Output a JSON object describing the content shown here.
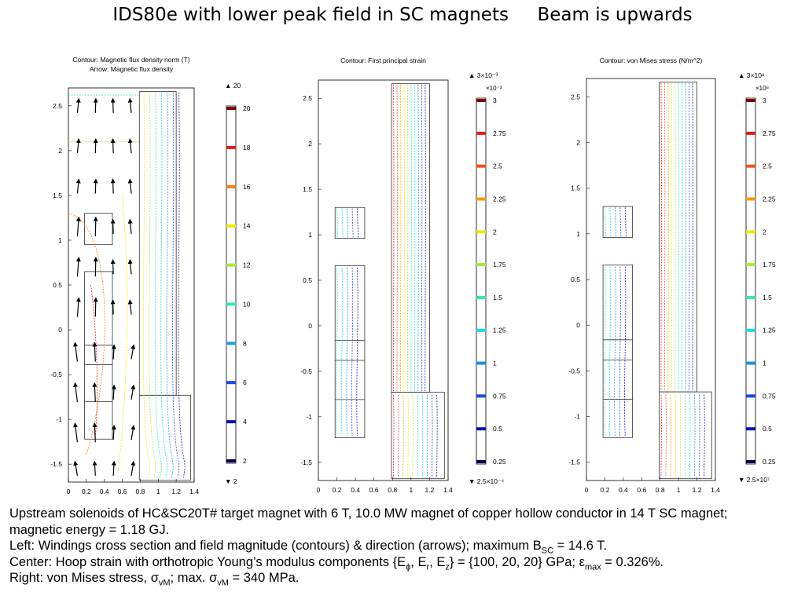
{
  "title": "IDS80e with lower peak field in SC magnets     Beam is upwards",
  "caption": {
    "line1": "Upstream solenoids of HC&SC20T# target magnet with 6 T, 10.0 MW magnet of copper hollow conductor in 14 T SC magnet;",
    "line2": "magnetic energy = 1.18 GJ.",
    "line3_a": "Left:  Windings cross section and field magnitude (contours) & direction (arrows); maximum B",
    "line3_sub": "SC",
    "line3_b": " = 14.6 T.",
    "line4_a": "Center:  Hoop strain with orthotropic Young’s modulus components {E",
    "line4_sub1": "ϕ",
    "line4_b": ", E",
    "line4_sub2": "r",
    "line4_c": ", E",
    "line4_sub3": "z",
    "line4_d": "} = {100, 20, 20} GPa; ε",
    "line4_sub4": "max",
    "line4_e": " = 0.326%.",
    "line5_a": "Right:  von Mises stress, σ",
    "line5_sub1": "vM",
    "line5_b": "; max. σ",
    "line5_sub2": "vM",
    "line5_c": " = 340 MPa."
  },
  "chart_data": [
    {
      "type": "contour",
      "title": "Contour: Magnetic flux density norm (T)",
      "subtitle": "Arrow: Magnetic flux density",
      "xlim": [
        0,
        1.4
      ],
      "ylim": [
        -1.7,
        2.7
      ],
      "xticks": [
        "0",
        "0.2",
        "0.4",
        "0.6",
        "0.8",
        "1",
        "1.2",
        "1.4"
      ],
      "yticks": [
        "-1.5",
        "-1",
        "-0.5",
        "0",
        "0.5",
        "1",
        "1.5",
        "2",
        "2.5"
      ],
      "colorbar": {
        "max_label": "▲ 20",
        "min_label": "▼ 2",
        "levels": [
          {
            "label": "20",
            "color": "#7f0000"
          },
          {
            "label": "18",
            "color": "#e21a1a"
          },
          {
            "label": "16",
            "color": "#f57d10"
          },
          {
            "label": "14",
            "color": "#f2e600"
          },
          {
            "label": "12",
            "color": "#a4ec3e"
          },
          {
            "label": "10",
            "color": "#33e8a8"
          },
          {
            "label": "8",
            "color": "#1aa0e0"
          },
          {
            "label": "6",
            "color": "#1f44e0"
          },
          {
            "label": "4",
            "color": "#1010b0"
          },
          {
            "label": "2",
            "color": "#00004f"
          }
        ]
      }
    },
    {
      "type": "contour",
      "title": "Contour: First principal strain",
      "xlim": [
        0,
        1.4
      ],
      "ylim": [
        -1.7,
        2.7
      ],
      "xticks": [
        "0",
        "0.2",
        "0.4",
        "0.6",
        "0.8",
        "1",
        "1.2",
        "1.4"
      ],
      "yticks": [
        "-1.5",
        "-1",
        "-0.5",
        "0",
        "0.5",
        "1",
        "1.5",
        "2",
        "2.5"
      ],
      "colorbar": {
        "max_label": "▲ 3×10⁻³",
        "multiplier": "×10⁻³",
        "min_label": "▼ 2.5×10⁻⁴",
        "levels": [
          {
            "label": "3",
            "color": "#7f0000"
          },
          {
            "label": "2.75",
            "color": "#e21a1a"
          },
          {
            "label": "2.5",
            "color": "#f0501a"
          },
          {
            "label": "2.25",
            "color": "#f89a10"
          },
          {
            "label": "2",
            "color": "#f2e600"
          },
          {
            "label": "1.75",
            "color": "#a4ec3e"
          },
          {
            "label": "1.5",
            "color": "#33e8a8"
          },
          {
            "label": "1.25",
            "color": "#1ad8e0"
          },
          {
            "label": "1",
            "color": "#1a90e0"
          },
          {
            "label": "0.75",
            "color": "#1f44e0"
          },
          {
            "label": "0.5",
            "color": "#1010b0"
          },
          {
            "label": "0.25",
            "color": "#00004f"
          }
        ]
      }
    },
    {
      "type": "contour",
      "title": "Contour: von Mises stress (N/m^2)",
      "xlim": [
        0,
        1.4
      ],
      "ylim": [
        -1.7,
        2.7
      ],
      "xticks": [
        "0",
        "0.2",
        "0.4",
        "0.6",
        "0.8",
        "1",
        "1.2",
        "1.4"
      ],
      "yticks": [
        "-1.5",
        "-1",
        "-0.5",
        "0",
        "0.5",
        "1",
        "1.5",
        "2",
        "2.5"
      ],
      "colorbar": {
        "max_label": "▲ 3×10⁸",
        "multiplier": "×10⁸",
        "min_label": "▼ 2.5×10⁷",
        "levels": [
          {
            "label": "3",
            "color": "#7f0000"
          },
          {
            "label": "2.75",
            "color": "#e21a1a"
          },
          {
            "label": "2.5",
            "color": "#f0501a"
          },
          {
            "label": "2.25",
            "color": "#f89a10"
          },
          {
            "label": "2",
            "color": "#f2e600"
          },
          {
            "label": "1.75",
            "color": "#a4ec3e"
          },
          {
            "label": "1.5",
            "color": "#33e8a8"
          },
          {
            "label": "1.25",
            "color": "#1ad8e0"
          },
          {
            "label": "1",
            "color": "#1a90e0"
          },
          {
            "label": "0.75",
            "color": "#1f44e0"
          },
          {
            "label": "0.5",
            "color": "#1010b0"
          },
          {
            "label": "0.25",
            "color": "#00004f"
          }
        ]
      }
    }
  ]
}
